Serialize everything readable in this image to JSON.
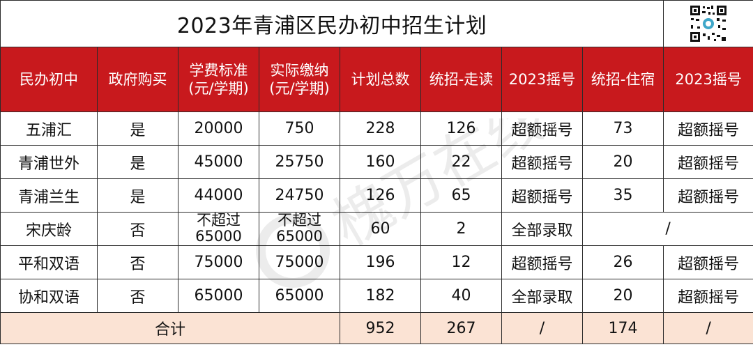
{
  "title": "2023年青浦区民办初中招生计划",
  "qr_icon": "qr-code-icon",
  "watermark_text": "槐万在线",
  "headers": [
    {
      "lines": [
        "民办初中"
      ]
    },
    {
      "lines": [
        "政府购买"
      ]
    },
    {
      "lines": [
        "学费标准",
        "(元/学期)"
      ]
    },
    {
      "lines": [
        "实际缴纳",
        "(元/学期)"
      ]
    },
    {
      "lines": [
        "计划总数"
      ]
    },
    {
      "lines": [
        "统招-走读"
      ]
    },
    {
      "lines": [
        "2023摇号"
      ]
    },
    {
      "lines": [
        "统招-住宿"
      ]
    },
    {
      "lines": [
        "2023摇号"
      ]
    }
  ],
  "rows": [
    {
      "school": "五浦汇",
      "gov": "是",
      "tuition": "20000",
      "actual": "750",
      "total": "228",
      "day": "126",
      "day_lottery": "超额摇号",
      "board": "73",
      "board_lottery": "超额摇号"
    },
    {
      "school": "青浦世外",
      "gov": "是",
      "tuition": "45000",
      "actual": "25750",
      "total": "160",
      "day": "22",
      "day_lottery": "超额摇号",
      "board": "20",
      "board_lottery": "超额摇号"
    },
    {
      "school": "青浦兰生",
      "gov": "是",
      "tuition": "44000",
      "actual": "24750",
      "total": "126",
      "day": "65",
      "day_lottery": "超额摇号",
      "board": "35",
      "board_lottery": "超额摇号"
    },
    {
      "school": "宋庆龄",
      "gov": "否",
      "tuition_l1": "不超过",
      "tuition_l2": "65000",
      "actual_l1": "不超过",
      "actual_l2": "65000",
      "total": "60",
      "day": "2",
      "day_lottery": "全部录取",
      "board_merged": "/"
    },
    {
      "school": "平和双语",
      "gov": "否",
      "tuition": "75000",
      "actual": "75000",
      "total": "196",
      "day": "12",
      "day_lottery": "超额摇号",
      "board": "26",
      "board_lottery": "超额摇号"
    },
    {
      "school": "协和双语",
      "gov": "否",
      "tuition": "65000",
      "actual": "65000",
      "total": "182",
      "day": "40",
      "day_lottery": "全部录取",
      "board": "20",
      "board_lottery": "超额摇号"
    }
  ],
  "total_row": {
    "label": "合计",
    "total": "952",
    "day": "267",
    "day_lottery": "/",
    "board": "174",
    "board_lottery": "/"
  },
  "colors": {
    "header_bg": "#c8191d",
    "accent_red": "#d01c1f",
    "total_bg": "#fbe3d4"
  }
}
